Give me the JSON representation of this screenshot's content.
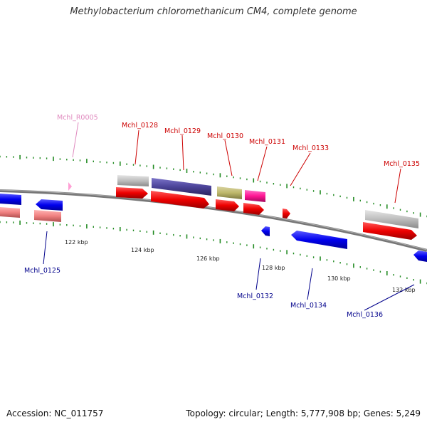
{
  "header": {
    "title": "Methylobacterium chloromethanicum CM4, complete genome"
  },
  "footer": {
    "accession": "Accession: NC_011757",
    "summary": "Topology: circular; Length: 5,777,908 bp; Genes: 5,249"
  },
  "colors": {
    "backbone": "#888888",
    "tick": "#228b22",
    "forward_label": "#cc0000",
    "reverse_label": "#00008b",
    "rna_label": "#e08abf"
  },
  "scale": {
    "ticks": [
      {
        "label": "122 kbp"
      },
      {
        "label": "124 kbp"
      },
      {
        "label": "126 kbp"
      },
      {
        "label": "128 kbp"
      },
      {
        "label": "130 kbp"
      },
      {
        "label": "132 kbp"
      }
    ]
  },
  "gene_labels": [
    {
      "text": "Mchl_R0005",
      "strand": "rna"
    },
    {
      "text": "Mchl_0128",
      "strand": "forward"
    },
    {
      "text": "Mchl_0129",
      "strand": "forward"
    },
    {
      "text": "Mchl_0130",
      "strand": "forward"
    },
    {
      "text": "Mchl_0131",
      "strand": "forward"
    },
    {
      "text": "Mchl_0133",
      "strand": "forward"
    },
    {
      "text": "Mchl_0135",
      "strand": "forward"
    },
    {
      "text": "Mchl_0125",
      "strand": "reverse"
    },
    {
      "text": "Mchl_0132",
      "strand": "reverse"
    },
    {
      "text": "Mchl_0134",
      "strand": "reverse"
    },
    {
      "text": "Mchl_0136",
      "strand": "reverse"
    }
  ]
}
